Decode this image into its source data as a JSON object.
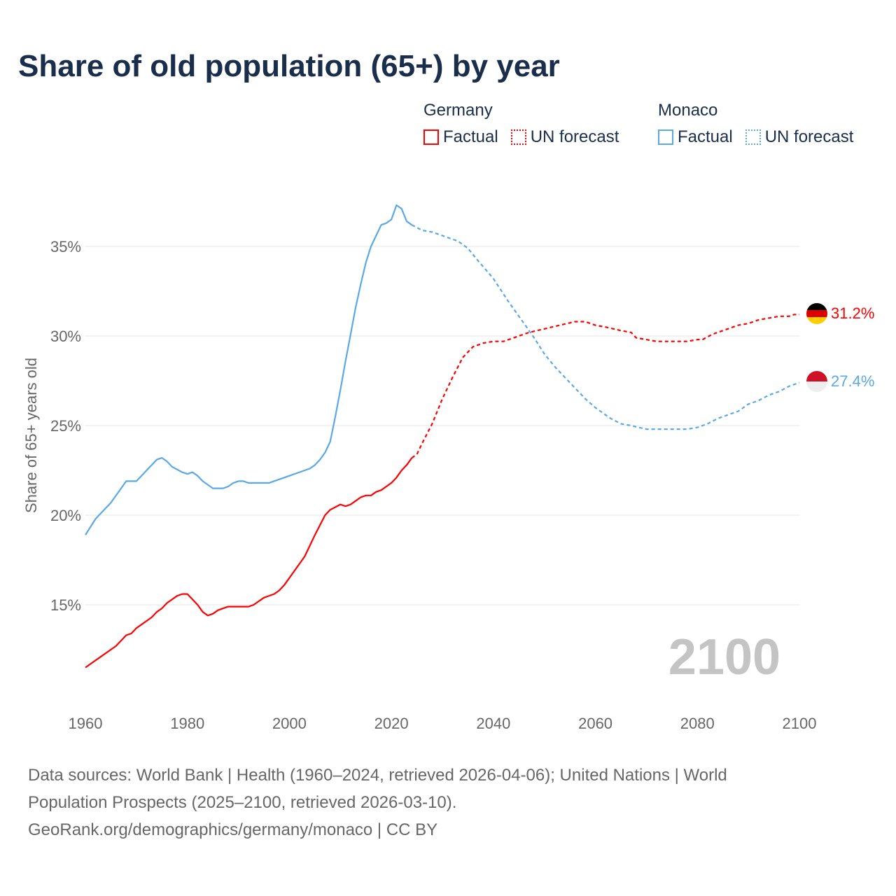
{
  "title": "Share of old population (65+) by year",
  "legend": {
    "groups": [
      {
        "name": "Germany",
        "factual": "Factual",
        "forecast": "UN forecast",
        "color": "#ff0000"
      },
      {
        "name": "Monaco",
        "factual": "Factual",
        "forecast": "UN forecast",
        "color": "#5ba8e8"
      }
    ]
  },
  "year_watermark": "2100",
  "footer": {
    "line1": "Data sources: World Bank | Health (1960–2024, retrieved 2026-04-06); United Nations | World",
    "line2": "Population Prospects (2025–2100, retrieved 2026-03-10).",
    "line3": "GeoRank.org/demographics/germany/monaco | CC BY"
  },
  "chart_data": {
    "type": "line",
    "title": "Share of old population (65+) by year",
    "xlabel": "",
    "ylabel": "Share of 65+ years old",
    "xlim": [
      1960,
      2100
    ],
    "ylim": [
      11,
      38
    ],
    "x_ticks": [
      "1960",
      "1980",
      "2000",
      "2020",
      "2040",
      "2060",
      "2080",
      "2100"
    ],
    "y_ticks": [
      {
        "v": 15,
        "label": "15%"
      },
      {
        "v": 20,
        "label": "20%"
      },
      {
        "v": 25,
        "label": "25%"
      },
      {
        "v": 30,
        "label": "30%"
      },
      {
        "v": 35,
        "label": "35%"
      }
    ],
    "grid": true,
    "series": [
      {
        "name": "Germany",
        "color": "#ff0000",
        "end_label": "31.2%",
        "factual": [
          [
            1960,
            11.5
          ],
          [
            1963,
            12.1
          ],
          [
            1966,
            12.7
          ],
          [
            1968,
            13.3
          ],
          [
            1969,
            13.4
          ],
          [
            1970,
            13.7
          ],
          [
            1973,
            14.3
          ],
          [
            1974,
            14.6
          ],
          [
            1975,
            14.8
          ],
          [
            1976,
            15.1
          ],
          [
            1978,
            15.5
          ],
          [
            1979,
            15.6
          ],
          [
            1980,
            15.6
          ],
          [
            1982,
            15.0
          ],
          [
            1983,
            14.6
          ],
          [
            1984,
            14.4
          ],
          [
            1985,
            14.5
          ],
          [
            1986,
            14.7
          ],
          [
            1988,
            14.9
          ],
          [
            1992,
            14.9
          ],
          [
            1993,
            15.0
          ],
          [
            1995,
            15.4
          ],
          [
            1997,
            15.6
          ],
          [
            1998,
            15.8
          ],
          [
            1999,
            16.1
          ],
          [
            2001,
            16.9
          ],
          [
            2003,
            17.7
          ],
          [
            2005,
            18.9
          ],
          [
            2007,
            20.0
          ],
          [
            2008,
            20.3
          ],
          [
            2010,
            20.6
          ],
          [
            2011,
            20.5
          ],
          [
            2012,
            20.6
          ],
          [
            2014,
            21.0
          ],
          [
            2015,
            21.1
          ],
          [
            2016,
            21.1
          ],
          [
            2017,
            21.3
          ],
          [
            2018,
            21.4
          ],
          [
            2020,
            21.8
          ],
          [
            2021,
            22.1
          ],
          [
            2022,
            22.5
          ],
          [
            2023,
            22.8
          ],
          [
            2024,
            23.2
          ]
        ],
        "forecast": [
          [
            2024,
            23.2
          ],
          [
            2025,
            23.4
          ],
          [
            2026,
            24.0
          ],
          [
            2028,
            25.1
          ],
          [
            2030,
            26.5
          ],
          [
            2032,
            27.7
          ],
          [
            2034,
            28.8
          ],
          [
            2036,
            29.4
          ],
          [
            2038,
            29.6
          ],
          [
            2040,
            29.7
          ],
          [
            2042,
            29.7
          ],
          [
            2045,
            30.0
          ],
          [
            2047,
            30.2
          ],
          [
            2050,
            30.4
          ],
          [
            2053,
            30.6
          ],
          [
            2056,
            30.8
          ],
          [
            2058,
            30.8
          ],
          [
            2060,
            30.6
          ],
          [
            2062,
            30.5
          ],
          [
            2065,
            30.3
          ],
          [
            2067,
            30.2
          ],
          [
            2068,
            29.9
          ],
          [
            2072,
            29.7
          ],
          [
            2078,
            29.7
          ],
          [
            2080,
            29.8
          ],
          [
            2081,
            29.8
          ],
          [
            2083,
            30.1
          ],
          [
            2085,
            30.3
          ],
          [
            2088,
            30.6
          ],
          [
            2090,
            30.7
          ],
          [
            2092,
            30.9
          ],
          [
            2094,
            31.0
          ],
          [
            2096,
            31.1
          ],
          [
            2098,
            31.1
          ],
          [
            2099,
            31.2
          ],
          [
            2100,
            31.2
          ]
        ]
      },
      {
        "name": "Monaco",
        "color": "#5ba8e8",
        "end_label": "27.4%",
        "factual": [
          [
            1960,
            18.9
          ],
          [
            1962,
            19.8
          ],
          [
            1965,
            20.7
          ],
          [
            1967,
            21.5
          ],
          [
            1968,
            21.9
          ],
          [
            1970,
            21.9
          ],
          [
            1972,
            22.5
          ],
          [
            1974,
            23.1
          ],
          [
            1975,
            23.2
          ],
          [
            1976,
            23.0
          ],
          [
            1977,
            22.7
          ],
          [
            1979,
            22.4
          ],
          [
            1980,
            22.3
          ],
          [
            1981,
            22.4
          ],
          [
            1982,
            22.2
          ],
          [
            1983,
            21.9
          ],
          [
            1985,
            21.5
          ],
          [
            1987,
            21.5
          ],
          [
            1988,
            21.6
          ],
          [
            1989,
            21.8
          ],
          [
            1990,
            21.9
          ],
          [
            1991,
            21.9
          ],
          [
            1992,
            21.8
          ],
          [
            1996,
            21.8
          ],
          [
            2000,
            22.2
          ],
          [
            2004,
            22.6
          ],
          [
            2005,
            22.8
          ],
          [
            2006,
            23.1
          ],
          [
            2007,
            23.5
          ],
          [
            2008,
            24.1
          ],
          [
            2009,
            25.5
          ],
          [
            2010,
            27.0
          ],
          [
            2011,
            28.6
          ],
          [
            2012,
            30.1
          ],
          [
            2013,
            31.6
          ],
          [
            2014,
            32.9
          ],
          [
            2015,
            34.1
          ],
          [
            2016,
            35.0
          ],
          [
            2017,
            35.6
          ],
          [
            2018,
            36.2
          ],
          [
            2019,
            36.3
          ],
          [
            2020,
            36.5
          ],
          [
            2021,
            37.3
          ],
          [
            2022,
            37.1
          ],
          [
            2023,
            36.4
          ],
          [
            2024,
            36.2
          ]
        ],
        "forecast": [
          [
            2024,
            36.2
          ],
          [
            2026,
            35.9
          ],
          [
            2028,
            35.8
          ],
          [
            2030,
            35.6
          ],
          [
            2032,
            35.4
          ],
          [
            2033,
            35.3
          ],
          [
            2035,
            34.9
          ],
          [
            2037,
            34.2
          ],
          [
            2040,
            33.2
          ],
          [
            2043,
            31.9
          ],
          [
            2046,
            30.7
          ],
          [
            2048,
            29.9
          ],
          [
            2050,
            29.0
          ],
          [
            2052,
            28.3
          ],
          [
            2055,
            27.4
          ],
          [
            2058,
            26.5
          ],
          [
            2060,
            26.0
          ],
          [
            2063,
            25.4
          ],
          [
            2065,
            25.1
          ],
          [
            2067,
            25.0
          ],
          [
            2070,
            24.8
          ],
          [
            2078,
            24.8
          ],
          [
            2080,
            24.9
          ],
          [
            2082,
            25.1
          ],
          [
            2084,
            25.4
          ],
          [
            2086,
            25.6
          ],
          [
            2088,
            25.8
          ],
          [
            2090,
            26.2
          ],
          [
            2092,
            26.4
          ],
          [
            2094,
            26.7
          ],
          [
            2096,
            26.9
          ],
          [
            2098,
            27.2
          ],
          [
            2100,
            27.4
          ]
        ]
      }
    ]
  }
}
